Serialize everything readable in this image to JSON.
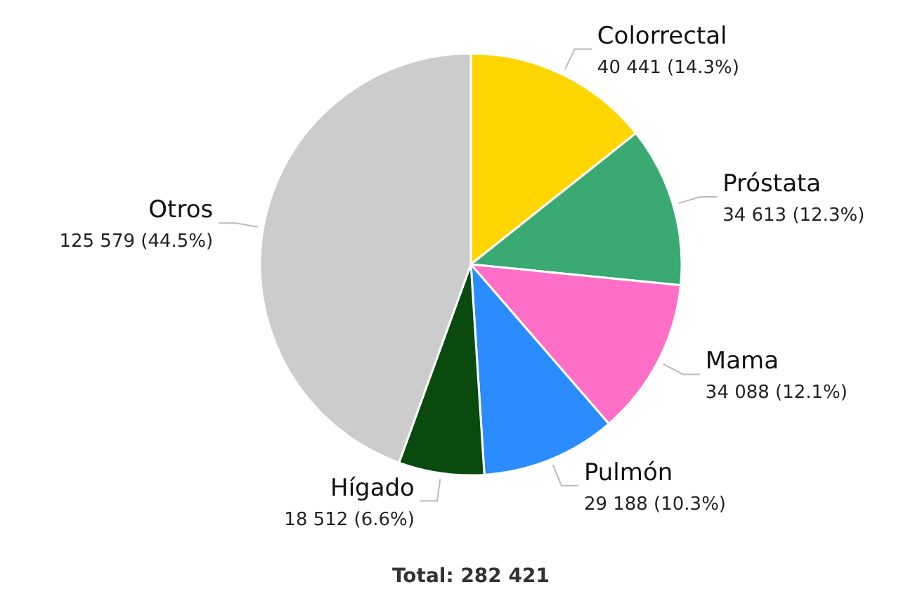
{
  "chart_data": {
    "type": "pie",
    "categories": [
      "Colorrectal",
      "Próstata",
      "Mama",
      "Pulmón",
      "Hígado",
      "Otros"
    ],
    "values": [
      40441,
      34613,
      34088,
      29188,
      18512,
      125579
    ],
    "value_labels": [
      "40 441 (14.3%)",
      "34 613 (12.3%)",
      "34 088 (12.1%)",
      "29 188 (10.3%)",
      "18 512 (6.6%)",
      "125 579 (44.5%)"
    ],
    "colors": [
      "#ffd602",
      "#3aa972",
      "#ff6ec7",
      "#2b8cff",
      "#0b4a0e",
      "#cccccc"
    ],
    "annotations": [
      "Total: 282 421"
    ]
  }
}
